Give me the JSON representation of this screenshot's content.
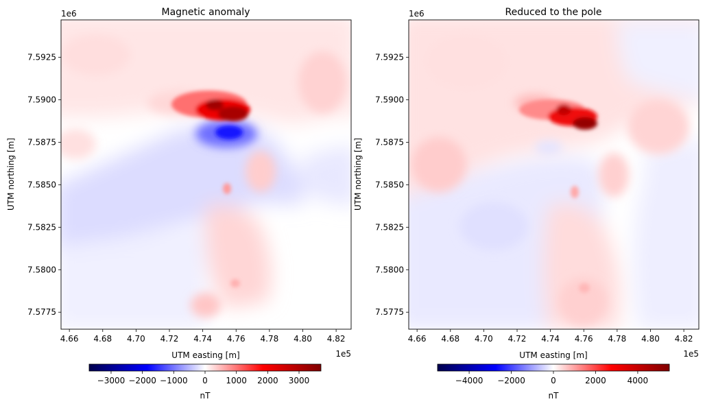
{
  "chart_data": [
    {
      "type": "heatmap",
      "title": "Magnetic anomaly",
      "xlabel": "UTM easting [m]",
      "ylabel": "UTM northing [m]",
      "x_offset_label": "1e5",
      "y_offset_label": "1e6",
      "x_ticks": [
        "4.66",
        "4.68",
        "4.70",
        "4.72",
        "4.74",
        "4.76",
        "4.78",
        "4.80",
        "4.82"
      ],
      "y_ticks": [
        "7.5775",
        "7.5800",
        "7.5825",
        "7.5850",
        "7.5875",
        "7.5900",
        "7.5925"
      ],
      "xlim": [
        465500,
        482900
      ],
      "ylim": [
        7576500,
        7594700
      ],
      "colormap": "seismic",
      "colorbar": {
        "label": "nT",
        "range": [
          -3700,
          3700
        ],
        "ticks": [
          {
            "value": -3000,
            "label": "−3000"
          },
          {
            "value": -2000,
            "label": "−2000"
          },
          {
            "value": -1000,
            "label": "−1000"
          },
          {
            "value": 0,
            "label": "0"
          },
          {
            "value": 1000,
            "label": "1000"
          },
          {
            "value": 2000,
            "label": "2000"
          },
          {
            "value": 3000,
            "label": "3000"
          }
        ]
      },
      "features": [
        {
          "kind": "high",
          "x": 475800,
          "y": 7589300,
          "value": 3600
        },
        {
          "kind": "low",
          "x": 476000,
          "y": 7588100,
          "value": -2600
        },
        {
          "kind": "high",
          "x": 473200,
          "y": 7589700,
          "value": 900
        },
        {
          "kind": "low",
          "x": 471000,
          "y": 7586300,
          "value": -800
        },
        {
          "kind": "high",
          "x": 476000,
          "y": 7581500,
          "value": 700
        },
        {
          "kind": "high",
          "x": 477800,
          "y": 7586500,
          "value": 600
        },
        {
          "kind": "high",
          "x": 474500,
          "y": 7577200,
          "value": 600
        },
        {
          "kind": "high",
          "x": 469000,
          "y": 7592500,
          "value": 500
        },
        {
          "kind": "high",
          "x": 479500,
          "y": 7591000,
          "value": 500
        }
      ]
    },
    {
      "type": "heatmap",
      "title": "Reduced to the pole",
      "xlabel": "UTM easting [m]",
      "ylabel": "UTM northing [m]",
      "x_offset_label": "1e5",
      "y_offset_label": "1e6",
      "x_ticks": [
        "4.66",
        "4.68",
        "4.70",
        "4.72",
        "4.74",
        "4.76",
        "4.78",
        "4.80",
        "4.82"
      ],
      "y_ticks": [
        "7.5775",
        "7.5800",
        "7.5825",
        "7.5850",
        "7.5875",
        "7.5900",
        "7.5925"
      ],
      "xlim": [
        465500,
        482900
      ],
      "ylim": [
        7576500,
        7594700
      ],
      "colormap": "seismic",
      "colorbar": {
        "label": "nT",
        "range": [
          -5500,
          5500
        ],
        "ticks": [
          {
            "value": -4000,
            "label": "−4000"
          },
          {
            "value": -2000,
            "label": "−2000"
          },
          {
            "value": 0,
            "label": "0"
          },
          {
            "value": 2000,
            "label": "2000"
          },
          {
            "value": 4000,
            "label": "4000"
          }
        ]
      },
      "features": [
        {
          "kind": "high",
          "x": 476000,
          "y": 7588800,
          "value": 5200
        },
        {
          "kind": "high",
          "x": 474500,
          "y": 7589300,
          "value": 2200
        },
        {
          "kind": "high",
          "x": 469000,
          "y": 7589000,
          "value": 800
        },
        {
          "kind": "high",
          "x": 476000,
          "y": 7581000,
          "value": 800
        },
        {
          "kind": "high",
          "x": 479500,
          "y": 7589500,
          "value": 700
        },
        {
          "kind": "high",
          "x": 477500,
          "y": 7585500,
          "value": 700
        },
        {
          "kind": "low",
          "x": 471000,
          "y": 7582800,
          "value": -400
        },
        {
          "kind": "low",
          "x": 481000,
          "y": 7592000,
          "value": -300
        }
      ]
    }
  ]
}
